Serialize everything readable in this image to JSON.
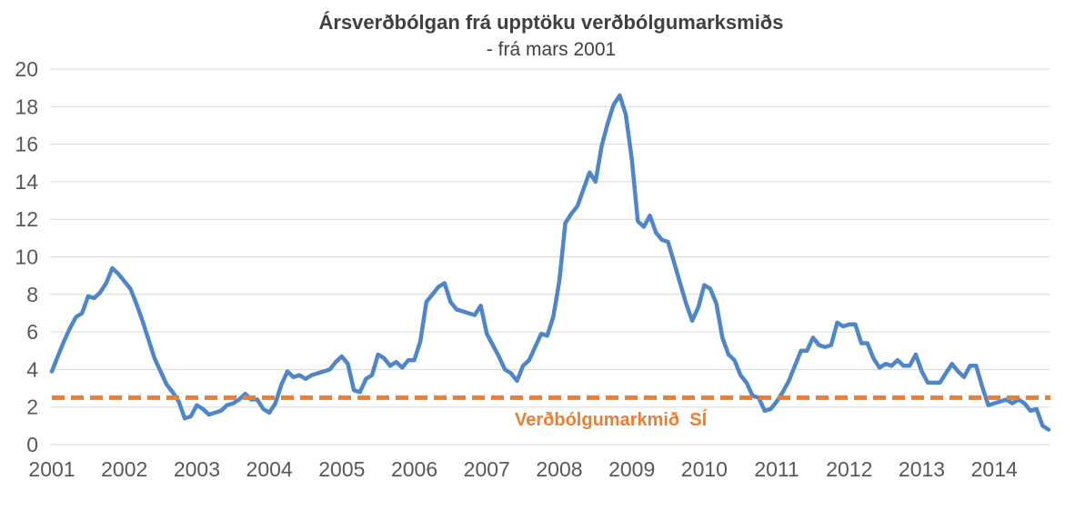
{
  "chart_data": {
    "type": "line",
    "title": "Ársverðbólgan frá upptöku verðbólgumarksmiðs",
    "subtitle": "- frá mars 2001",
    "x_start": "mars 2001",
    "x_frequency": "monthly",
    "x_tick_labels": [
      "2001",
      "2002",
      "2003",
      "2004",
      "2005",
      "2006",
      "2007",
      "2008",
      "2009",
      "2010",
      "2011",
      "2012",
      "2013",
      "2014"
    ],
    "months_per_tick": 12,
    "ylim": [
      0,
      20
    ],
    "y_tick_step": 2,
    "grid": true,
    "legend_position": "none",
    "series": [
      {
        "name": "Ársverðbólga",
        "color": "#4E86C8",
        "style": "solid",
        "values": [
          3.9,
          4.7,
          5.5,
          6.2,
          6.8,
          7.0,
          7.9,
          7.8,
          8.1,
          8.6,
          9.4,
          9.1,
          8.7,
          8.3,
          7.5,
          6.6,
          5.6,
          4.6,
          3.9,
          3.2,
          2.8,
          2.3,
          1.4,
          1.5,
          2.1,
          1.9,
          1.6,
          1.7,
          1.8,
          2.1,
          2.2,
          2.4,
          2.7,
          2.4,
          2.4,
          1.9,
          1.7,
          2.2,
          3.2,
          3.9,
          3.6,
          3.7,
          3.5,
          3.7,
          3.8,
          3.9,
          4.0,
          4.4,
          4.7,
          4.3,
          2.9,
          2.8,
          3.5,
          3.7,
          4.8,
          4.6,
          4.2,
          4.4,
          4.1,
          4.5,
          4.5,
          5.5,
          7.6,
          8.0,
          8.4,
          8.6,
          7.6,
          7.2,
          7.1,
          7.0,
          6.9,
          7.4,
          5.9,
          5.3,
          4.7,
          4.0,
          3.8,
          3.4,
          4.2,
          4.5,
          5.2,
          5.9,
          5.8,
          6.8,
          8.7,
          11.8,
          12.3,
          12.7,
          13.6,
          14.5,
          14.0,
          15.9,
          17.1,
          18.1,
          18.6,
          17.6,
          15.2,
          11.9,
          11.6,
          12.2,
          11.3,
          10.9,
          10.8,
          9.7,
          8.6,
          7.5,
          6.6,
          7.3,
          8.5,
          8.3,
          7.5,
          5.7,
          4.8,
          4.5,
          3.7,
          3.3,
          2.6,
          2.5,
          1.8,
          1.9,
          2.3,
          2.8,
          3.4,
          4.2,
          5.0,
          5.0,
          5.7,
          5.3,
          5.2,
          5.3,
          6.5,
          6.3,
          6.4,
          6.4,
          5.4,
          5.4,
          4.6,
          4.1,
          4.3,
          4.2,
          4.5,
          4.2,
          4.2,
          4.8,
          3.9,
          3.3,
          3.3,
          3.3,
          3.8,
          4.3,
          3.9,
          3.6,
          4.2,
          4.2,
          3.1,
          2.1,
          2.2,
          2.3,
          2.4,
          2.2,
          2.4,
          2.2,
          1.8,
          1.9,
          1.0,
          0.8
        ]
      }
    ],
    "reference_line": {
      "label": "Verðbólgumarkmið  SÍ",
      "value": 2.5,
      "color": "#ED7D31",
      "style": "dashed"
    }
  },
  "colors": {
    "line_blue": "#4E86C8",
    "target_orange": "#ED7D31",
    "gridline_gray": "#D9D9D9",
    "tick_text_gray": "#595959",
    "title_gray": "#404040"
  }
}
